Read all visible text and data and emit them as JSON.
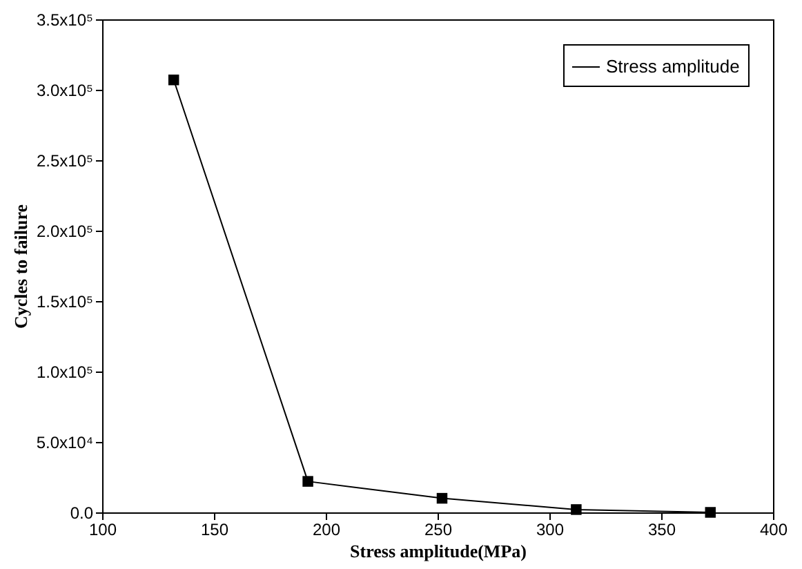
{
  "chart_data": {
    "type": "line",
    "xlabel": "Stress amplitude(MPa)",
    "ylabel": "Cycles to failure",
    "x": [
      132,
      192,
      252,
      312,
      372
    ],
    "series": [
      {
        "name": "Stress amplitude",
        "color": "#000000",
        "values": [
          307000,
          22000,
          10000,
          2000,
          0
        ]
      }
    ],
    "xlim": [
      100,
      400
    ],
    "xticks": [
      100,
      150,
      200,
      250,
      300,
      350,
      400
    ],
    "ylim": [
      0,
      350000
    ],
    "yticks": [
      {
        "value": 0,
        "label": "0.0"
      },
      {
        "value": 50000,
        "label": "5.0x10⁴"
      },
      {
        "value": 100000,
        "label": "1.0x10⁵"
      },
      {
        "value": 150000,
        "label": "1.5x10⁵"
      },
      {
        "value": 200000,
        "label": "2.0x10⁵"
      },
      {
        "value": 250000,
        "label": "2.5x10⁵"
      },
      {
        "value": 300000,
        "label": "3.0x10⁵"
      },
      {
        "value": 350000,
        "label": "3.5x10⁵"
      }
    ],
    "marker": "square",
    "line_style": "solid",
    "legend": "top right",
    "grid": false
  }
}
